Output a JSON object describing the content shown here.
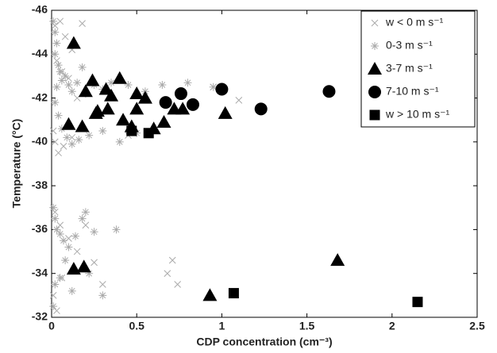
{
  "chart_data": {
    "type": "scatter",
    "xlabel": "CDP concentration (cm⁻³)",
    "ylabel": "Temperature (°C)",
    "xlim": [
      0,
      2.5
    ],
    "xticks": [
      0,
      0.5,
      1,
      1.5,
      2,
      2.5
    ],
    "ylim": [
      -32,
      -46
    ],
    "yticks": [
      -32,
      -34,
      -36,
      -38,
      -40,
      -42,
      -44,
      -46
    ],
    "legend": "upper right",
    "series": [
      {
        "name": "w < 0 m s⁻¹",
        "color": "#aaaaaa",
        "marker": "x",
        "x": [
          0.02,
          0.05,
          0.08,
          0.12,
          0.18,
          0.03,
          0.06,
          0.1,
          0.15,
          0.01,
          0.02,
          0.04,
          0.07,
          0.12,
          0.02,
          0.05,
          0.1,
          0.15,
          0.2,
          0.25,
          0.3,
          0.68,
          0.71,
          0.74,
          0.95,
          1.1,
          0.01,
          0.03,
          0.06,
          0.45
        ],
        "values": [
          -45.3,
          -45.5,
          -44.8,
          -44.2,
          -45.4,
          -43.7,
          -43.2,
          -42.9,
          -42.0,
          -40.5,
          -40.0,
          -39.5,
          -39.8,
          -40.2,
          -36.8,
          -36.2,
          -35.6,
          -35.0,
          -36.2,
          -34.5,
          -33.5,
          -34.0,
          -34.6,
          -33.5,
          -42.5,
          -41.9,
          -33.0,
          -32.3,
          -33.8,
          -40.3
        ]
      },
      {
        "name": "0-3 m s⁻¹",
        "color": "#aaaaaa",
        "marker": "asterisk",
        "x": [
          0.01,
          0.02,
          0.03,
          0.02,
          0.04,
          0.05,
          0.06,
          0.03,
          0.08,
          0.1,
          0.12,
          0.15,
          0.18,
          0.2,
          0.25,
          0.3,
          0.35,
          0.45,
          0.55,
          0.65,
          0.8,
          0.95,
          0.02,
          0.04,
          0.06,
          0.09,
          0.12,
          0.16,
          0.22,
          0.3,
          0.4,
          0.5,
          0.01,
          0.02,
          0.03,
          0.05,
          0.07,
          0.1,
          0.14,
          0.18,
          0.2,
          0.25,
          0.38,
          0.02,
          0.05,
          0.08,
          0.12,
          0.3,
          0.22,
          0.01
        ],
        "values": [
          -45.5,
          -45,
          -44.5,
          -44,
          -43.5,
          -43.2,
          -42.8,
          -42.5,
          -43,
          -42.6,
          -42.3,
          -42.7,
          -43.4,
          -42.2,
          -42.6,
          -42.4,
          -42.7,
          -42.6,
          -42.3,
          -42.6,
          -42.7,
          -42.5,
          -41.8,
          -41.2,
          -40.6,
          -40.2,
          -39.9,
          -40.1,
          -40.3,
          -40.5,
          -40.0,
          -40.4,
          -37.0,
          -36.5,
          -36.0,
          -35.8,
          -35.5,
          -35.2,
          -35.7,
          -36.5,
          -36.8,
          -35.9,
          -36.0,
          -33.5,
          -33.8,
          -34.6,
          -33.2,
          -33.0,
          -34.0,
          -32.5
        ]
      },
      {
        "name": "3-7 m s⁻¹",
        "color": "#000000",
        "marker": "triangle",
        "x": [
          0.13,
          0.1,
          0.18,
          0.2,
          0.24,
          0.27,
          0.26,
          0.32,
          0.35,
          0.33,
          0.4,
          0.42,
          0.47,
          0.5,
          0.5,
          0.55,
          0.6,
          0.66,
          0.72,
          0.77,
          1.02,
          0.13,
          0.19,
          1.68,
          0.93
        ],
        "values": [
          -44.5,
          -40.8,
          -40.7,
          -42.3,
          -42.8,
          -41.4,
          -41.3,
          -42.4,
          -42.1,
          -41.5,
          -42.9,
          -41.0,
          -40.7,
          -41.5,
          -42.2,
          -42.0,
          -40.6,
          -40.9,
          -41.5,
          -41.5,
          -41.3,
          -34.2,
          -34.3,
          -34.6,
          -33.0
        ]
      },
      {
        "name": "7-10 m s⁻¹",
        "color": "#000000",
        "marker": "circle",
        "x": [
          0.67,
          0.76,
          0.83,
          1.0,
          1.23,
          1.63
        ],
        "values": [
          -41.8,
          -42.2,
          -41.7,
          -42.4,
          -41.5,
          -42.3
        ]
      },
      {
        "name": "w > 10 m s⁻¹",
        "color": "#000000",
        "marker": "square",
        "x": [
          0.47,
          0.57,
          1.07,
          2.15
        ],
        "values": [
          -40.5,
          -40.4,
          -33.1,
          -32.7
        ]
      }
    ]
  }
}
